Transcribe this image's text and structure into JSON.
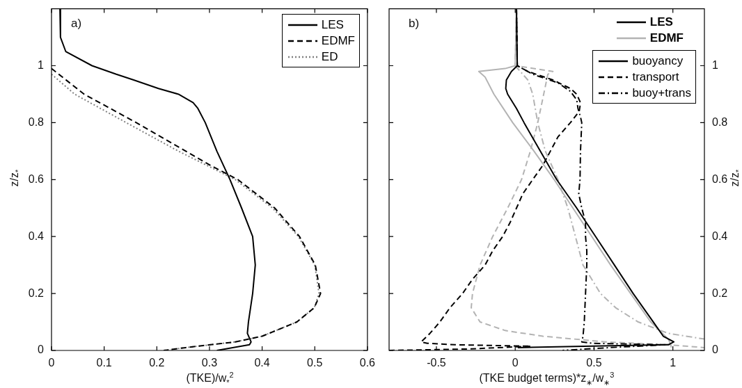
{
  "chart_data": [
    {
      "type": "line",
      "xlabel": "(TKE)/w$_{*}$$^{2}$",
      "ylabel": "z/z$_{*}$",
      "annotations": [
        "a)"
      ],
      "xlim": [
        0,
        0.6
      ],
      "xticks": [
        0,
        0.1,
        0.2,
        0.3,
        0.4,
        0.5,
        0.6
      ],
      "ylim": [
        0,
        1.2
      ],
      "yticks": [
        0,
        0.2,
        0.4,
        0.6,
        0.8,
        1
      ],
      "legend": "top right",
      "series": [
        {
          "name": "LES",
          "color": "#000000",
          "line_style": "solid",
          "x": [
            0.016,
            0.017,
            0.027,
            0.077,
            0.123,
            0.156,
            0.203,
            0.241,
            0.269,
            0.278,
            0.292,
            0.314,
            0.339,
            0.361,
            0.382,
            0.387,
            0.382,
            0.374,
            0.372,
            0.379,
            0.376,
            0.314
          ],
          "values": [
            1.2,
            1.1,
            1.05,
            1.0,
            0.97,
            0.95,
            0.92,
            0.9,
            0.87,
            0.85,
            0.8,
            0.7,
            0.6,
            0.5,
            0.4,
            0.3,
            0.2,
            0.1,
            0.06,
            0.03,
            0.02,
            0
          ]
        },
        {
          "name": "EDMF",
          "color": "#000000",
          "line_style": "dashed",
          "x": [
            0,
            0.062,
            0.161,
            0.255,
            0.302,
            0.354,
            0.424,
            0.471,
            0.501,
            0.511,
            0.499,
            0.466,
            0.4,
            0.349,
            0.255,
            0.213
          ],
          "values": [
            0.99,
            0.9,
            0.8,
            0.7,
            0.65,
            0.6,
            0.5,
            0.4,
            0.3,
            0.2,
            0.15,
            0.1,
            0.05,
            0.03,
            0.01,
            0
          ]
        },
        {
          "name": "ED",
          "color": "#808080",
          "line_style": "dotted",
          "x": [
            0,
            0.044,
            0.142,
            0.241,
            0.349,
            0.42,
            0.469,
            0.5,
            0.508,
            0.499,
            0.466,
            0.4,
            0.349,
            0.255,
            0.213
          ],
          "values": [
            0.97,
            0.9,
            0.8,
            0.7,
            0.6,
            0.5,
            0.4,
            0.3,
            0.2,
            0.15,
            0.1,
            0.05,
            0.03,
            0.01,
            0
          ]
        }
      ]
    },
    {
      "type": "line",
      "xlabel": "(TKE budget terms)*z$_{∗}$/w$_{∗}$$^{3}$",
      "y2label": "z/z$_{*}$",
      "annotations": [
        "b)",
        "LES",
        "EDMF"
      ],
      "xlim": [
        -0.8,
        1.2
      ],
      "xticks": [
        -0.5,
        0,
        0.5,
        1
      ],
      "y2lim": [
        0,
        1.2
      ],
      "y2ticks": [
        0,
        0.2,
        0.4,
        0.6,
        0.8,
        1
      ],
      "legend": "top right",
      "series": [
        {
          "name": "buoyancy",
          "color": "#000000",
          "line_style": "solid",
          "axis": "y2",
          "x": [
            0.008,
            0.013,
            -0.024,
            -0.056,
            -0.06,
            -0.048,
            0.008,
            0.056,
            0.159,
            0.263,
            0.39,
            0.51,
            0.629,
            0.748,
            0.876,
            0.939,
            1.006,
            0.971,
            0.49,
            0.016
          ],
          "values": [
            1.2,
            1.0,
            0.98,
            0.95,
            0.92,
            0.9,
            0.85,
            0.8,
            0.7,
            0.6,
            0.5,
            0.4,
            0.3,
            0.2,
            0.1,
            0.05,
            0.03,
            0.02,
            0.015,
            0.01
          ]
        },
        {
          "name": "transport",
          "color": "#000000",
          "line_style": "dashed",
          "axis": "y2",
          "x": [
            0.008,
            0.013,
            0.08,
            0.239,
            0.35,
            0.39,
            0.414,
            0.406,
            0.35,
            0.271,
            0.223,
            0.175,
            0.111,
            0.048,
            0.008,
            -0.032,
            -0.08,
            -0.143,
            -0.191,
            -0.271,
            -0.334,
            -0.414,
            -0.478,
            -0.541,
            -0.597,
            -0.557,
            -0.382,
            0.1,
            -0.3,
            -0.8
          ],
          "values": [
            1.2,
            1.0,
            0.98,
            0.95,
            0.92,
            0.9,
            0.87,
            0.84,
            0.8,
            0.75,
            0.7,
            0.65,
            0.6,
            0.55,
            0.5,
            0.45,
            0.4,
            0.35,
            0.3,
            0.25,
            0.2,
            0.15,
            0.1,
            0.06,
            0.03,
            0.025,
            0.02,
            0.015,
            0.005,
            0
          ]
        },
        {
          "name": "buoy+trans",
          "color": "#000000",
          "line_style": "dashdot",
          "axis": "y2",
          "x": [
            0.008,
            0.013,
            0.111,
            0.271,
            0.35,
            0.39,
            0.398,
            0.414,
            0.422,
            0.414,
            0.411,
            0.403,
            0.422,
            0.446,
            0.446,
            0.454,
            0.454,
            0.446,
            0.438,
            0.43,
            0.422,
            0.494,
            0.95,
            0.6,
            0.3
          ],
          "values": [
            1.2,
            1.0,
            0.97,
            0.94,
            0.91,
            0.88,
            0.85,
            0.82,
            0.8,
            0.7,
            0.6,
            0.55,
            0.5,
            0.45,
            0.4,
            0.35,
            0.3,
            0.2,
            0.1,
            0.05,
            0.03,
            0.025,
            0.02,
            0.01,
            0
          ]
        },
        {
          "color": "#b3b3b3",
          "line_style": "solid",
          "axis": "y2",
          "x": [
            0.008,
            0,
            -0.064,
            -0.231,
            -0.191,
            -0.135,
            -0.016,
            0.119,
            0.247,
            0.366,
            0.486,
            0.605,
            0.732,
            0.86,
            0.971,
            0.987,
            0.99
          ],
          "values": [
            1.2,
            1.0,
            0.99,
            0.98,
            0.96,
            0.9,
            0.8,
            0.7,
            0.6,
            0.5,
            0.4,
            0.3,
            0.2,
            0.1,
            0.04,
            0.02,
            0.01
          ]
        },
        {
          "color": "#b3b3b3",
          "line_style": "dashed",
          "axis": "y2",
          "x": [
            0.008,
            0,
            0.239,
            0.207,
            0.143,
            0.096,
            0.04,
            -0.048,
            -0.143,
            -0.223,
            -0.271,
            -0.279,
            -0.223,
            -0.064,
            0.175,
            0.573,
            0.971,
            1.2
          ],
          "values": [
            1.2,
            1.0,
            0.98,
            0.97,
            0.8,
            0.7,
            0.6,
            0.5,
            0.4,
            0.3,
            0.2,
            0.15,
            0.1,
            0.07,
            0.05,
            0.03,
            0.02,
            0.01
          ]
        },
        {
          "color": "#b3b3b3",
          "line_style": "dashdot",
          "axis": "y2",
          "x": [
            0,
            0.032,
            0.08,
            0.111,
            0.143,
            0.191,
            0.271,
            0.334,
            0.382,
            0.43,
            0.541,
            0.637,
            0.78,
            0.971,
            1.2
          ],
          "values": [
            1.0,
            0.98,
            0.95,
            0.9,
            0.8,
            0.7,
            0.6,
            0.5,
            0.4,
            0.3,
            0.2,
            0.15,
            0.1,
            0.06,
            0.04
          ]
        }
      ]
    }
  ]
}
